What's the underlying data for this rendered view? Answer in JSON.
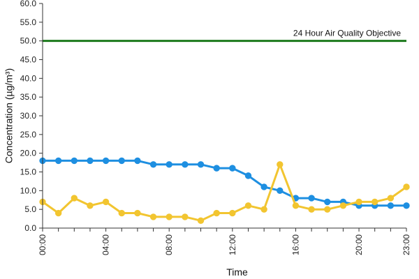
{
  "chart_data": {
    "type": "line",
    "xlabel": "Time",
    "ylabel": "Concentration (µg/m³)",
    "ylim": [
      0,
      60
    ],
    "y_ticks": [
      "0.0",
      "5.0",
      "10.0",
      "15.0",
      "20.0",
      "25.0",
      "30.0",
      "35.0",
      "40.0",
      "45.0",
      "50.0",
      "55.0",
      "60.0"
    ],
    "x_tick_labels": [
      "00:00",
      "04:00",
      "08:00",
      "12:00",
      "16:00",
      "20:00",
      "23:00"
    ],
    "x_tick_hours": [
      0,
      4,
      8,
      12,
      16,
      20,
      23
    ],
    "x": [
      0,
      1,
      2,
      3,
      4,
      5,
      6,
      7,
      8,
      9,
      10,
      11,
      12,
      13,
      14,
      15,
      16,
      17,
      18,
      19,
      20,
      21,
      22,
      23
    ],
    "grid": false,
    "series": [
      {
        "color": "#1E8FE1",
        "values": [
          18,
          18,
          18,
          18,
          18,
          18,
          18,
          17,
          17,
          17,
          17,
          16,
          16,
          14,
          11,
          10,
          8,
          8,
          7,
          7,
          6,
          6,
          6,
          6
        ]
      },
      {
        "color": "#F2C530",
        "values": [
          7,
          4,
          8,
          6,
          7,
          4,
          4,
          3,
          3,
          3,
          2,
          4,
          4,
          6,
          5,
          17,
          6,
          5,
          5,
          6,
          7,
          7,
          8,
          11
        ]
      }
    ],
    "reference_line": {
      "label": "24 Hour Air Quality Objective",
      "value": 50,
      "color": "#1C7A1C"
    }
  }
}
